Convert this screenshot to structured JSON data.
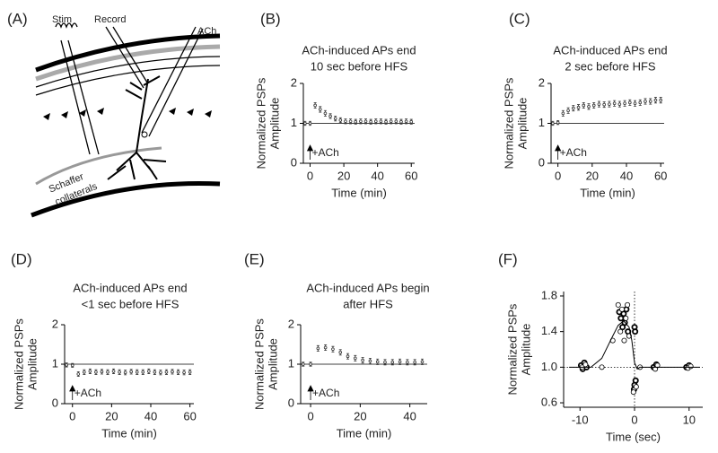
{
  "panel_a": {
    "label": "(A)",
    "stim": "Stim",
    "record": "Record",
    "ach": "ACh",
    "schaffer": [
      "Schaffer",
      "collaterals"
    ]
  },
  "chart_data": [
    {
      "type": "scatter",
      "label": "(B)",
      "title": [
        "ACh-induced APs end",
        "10 sec before HFS"
      ],
      "ylabel": [
        "Normalized PSPs",
        "Amplitude"
      ],
      "xlabel": "Time (min)",
      "xlim": [
        -4,
        62
      ],
      "ylim": [
        0,
        2
      ],
      "xticks": [
        0,
        20,
        40,
        60
      ],
      "yticks": [
        0,
        1,
        2
      ],
      "hline": 1,
      "annotation": {
        "text": "+ACh",
        "x": 0
      },
      "series": [
        {
          "color": "#333333",
          "x": [
            -3,
            0,
            3,
            6,
            9,
            12,
            15,
            18,
            21,
            24,
            27,
            30,
            33,
            36,
            39,
            42,
            45,
            48,
            51,
            54,
            57,
            60
          ],
          "values": [
            1.0,
            1.0,
            1.45,
            1.35,
            1.25,
            1.18,
            1.12,
            1.08,
            1.05,
            1.05,
            1.04,
            1.05,
            1.05,
            1.04,
            1.05,
            1.05,
            1.04,
            1.05,
            1.05,
            1.04,
            1.05,
            1.04
          ],
          "errors": [
            0.05,
            0.05,
            0.07,
            0.07,
            0.07,
            0.06,
            0.06,
            0.06,
            0.06,
            0.06,
            0.06,
            0.06,
            0.06,
            0.06,
            0.06,
            0.06,
            0.06,
            0.06,
            0.06,
            0.06,
            0.06,
            0.06
          ]
        }
      ]
    },
    {
      "type": "scatter",
      "label": "(C)",
      "title": [
        "ACh-induced APs end",
        "2 sec before HFS"
      ],
      "ylabel": [
        "Normalized PSPs",
        "Amplitude"
      ],
      "xlabel": "Time (min)",
      "xlim": [
        -4,
        62
      ],
      "ylim": [
        0,
        2
      ],
      "xticks": [
        0,
        20,
        40,
        60
      ],
      "yticks": [
        0,
        1,
        2
      ],
      "hline": 1,
      "annotation": {
        "text": "+ACh",
        "x": 0
      },
      "series": [
        {
          "color": "#333333",
          "x": [
            -3,
            0,
            3,
            6,
            9,
            12,
            15,
            18,
            21,
            24,
            27,
            30,
            33,
            36,
            39,
            42,
            45,
            48,
            51,
            54,
            57,
            60
          ],
          "values": [
            1.0,
            1.02,
            1.25,
            1.32,
            1.38,
            1.4,
            1.45,
            1.42,
            1.45,
            1.48,
            1.47,
            1.48,
            1.5,
            1.48,
            1.5,
            1.52,
            1.5,
            1.52,
            1.55,
            1.55,
            1.58,
            1.58
          ],
          "errors": [
            0.05,
            0.05,
            0.07,
            0.07,
            0.07,
            0.07,
            0.07,
            0.07,
            0.07,
            0.07,
            0.07,
            0.07,
            0.07,
            0.07,
            0.07,
            0.07,
            0.07,
            0.07,
            0.07,
            0.07,
            0.07,
            0.07
          ]
        }
      ]
    },
    {
      "type": "scatter",
      "label": "(D)",
      "title": [
        "ACh-induced APs end",
        "<1 sec before HFS"
      ],
      "ylabel": [
        "Normalized PSPs",
        "Amplitude"
      ],
      "xlabel": "Time (min)",
      "xlim": [
        -4,
        62
      ],
      "ylim": [
        0,
        2
      ],
      "xticks": [
        0,
        20,
        40,
        60
      ],
      "yticks": [
        0,
        1,
        2
      ],
      "hline": 1,
      "annotation": {
        "text": "+ACh",
        "x": 0
      },
      "series": [
        {
          "color": "#333333",
          "x": [
            -3,
            0,
            3,
            6,
            9,
            12,
            15,
            18,
            21,
            24,
            27,
            30,
            33,
            36,
            39,
            42,
            45,
            48,
            51,
            54,
            57,
            60
          ],
          "values": [
            0.98,
            0.97,
            0.75,
            0.8,
            0.82,
            0.8,
            0.81,
            0.8,
            0.82,
            0.8,
            0.79,
            0.81,
            0.8,
            0.8,
            0.82,
            0.8,
            0.79,
            0.8,
            0.81,
            0.8,
            0.79,
            0.8
          ],
          "errors": [
            0.05,
            0.05,
            0.06,
            0.06,
            0.06,
            0.06,
            0.06,
            0.06,
            0.06,
            0.06,
            0.06,
            0.06,
            0.06,
            0.06,
            0.06,
            0.06,
            0.06,
            0.06,
            0.06,
            0.06,
            0.06,
            0.06
          ]
        }
      ]
    },
    {
      "type": "scatter",
      "label": "(E)",
      "title": [
        "ACh-induced APs begin",
        "after HFS"
      ],
      "ylabel": [
        "Normalized PSPs",
        "Amplitude"
      ],
      "xlabel": "Time (min)",
      "xlim": [
        -4,
        47
      ],
      "ylim": [
        0,
        2
      ],
      "xticks": [
        0,
        20,
        40
      ],
      "yticks": [
        0,
        1,
        2
      ],
      "hline": 1,
      "annotation": {
        "text": "+ACh",
        "x": 0
      },
      "series": [
        {
          "color": "#333333",
          "x": [
            -3,
            0,
            3,
            6,
            9,
            12,
            15,
            18,
            21,
            24,
            27,
            30,
            33,
            36,
            39,
            42,
            45
          ],
          "values": [
            1.0,
            1.0,
            1.4,
            1.42,
            1.38,
            1.3,
            1.2,
            1.15,
            1.1,
            1.08,
            1.06,
            1.05,
            1.05,
            1.06,
            1.05,
            1.05,
            1.06
          ],
          "errors": [
            0.05,
            0.05,
            0.07,
            0.07,
            0.07,
            0.07,
            0.07,
            0.07,
            0.07,
            0.07,
            0.07,
            0.07,
            0.07,
            0.07,
            0.07,
            0.07,
            0.07
          ]
        }
      ]
    },
    {
      "type": "scatter",
      "label": "(F)",
      "ylabel": [
        "Normalized PSPs",
        "Amplitude"
      ],
      "xlabel": "Time (sec)",
      "xlim": [
        -13,
        12.5
      ],
      "ylim": [
        0.55,
        1.85
      ],
      "xticks": [
        -10,
        0,
        10
      ],
      "yticks": [
        0.6,
        {
          "value": 1,
          "label": "1.0"
        },
        1.4,
        1.8
      ],
      "hline": 1,
      "vline": 0,
      "ref_style": "dotted",
      "series": [
        {
          "color": "#000000",
          "marker": "filled",
          "x": [
            -9.8,
            -9.5,
            -9.2,
            -8.8,
            -2.8,
            -2.5,
            -2.2,
            -2,
            -1.8,
            -1.5,
            -1.2,
            0,
            0.1,
            0,
            -0.1,
            0.2,
            3.5,
            4,
            9.5,
            10
          ],
          "values": [
            1.02,
            0.98,
            1.05,
            1.0,
            1.62,
            1.55,
            1.45,
            1.6,
            1.5,
            1.65,
            1.4,
            1.45,
            1.4,
            0.8,
            0.75,
            0.85,
            1.0,
            1.03,
            1.0,
            1.02
          ]
        },
        {
          "color": "#000000",
          "marker": "open",
          "x": [
            -9.6,
            -9,
            -6,
            -4,
            -3,
            -2.6,
            -2.3,
            -1.9,
            -1.6,
            -1.3,
            -1,
            -0.2,
            0.3,
            1,
            3.8,
            4.2,
            9.8,
            10.3
          ],
          "values": [
            1.0,
            1.03,
            1.0,
            1.3,
            1.7,
            1.4,
            1.65,
            1.3,
            1.55,
            1.7,
            1.35,
            0.72,
            0.78,
            1.0,
            0.98,
            1.02,
            0.99,
            1.01
          ]
        },
        {
          "color": "#000000",
          "style": "line",
          "x": [
            -12,
            -8,
            -6,
            -4,
            -3,
            -2,
            -1,
            -0.5,
            0,
            0.5,
            1,
            2,
            12
          ],
          "values": [
            1.0,
            1.0,
            1.1,
            1.35,
            1.47,
            1.52,
            1.45,
            1.3,
            1.05,
            0.98,
            1.0,
            1.0,
            1.0
          ]
        }
      ]
    }
  ]
}
